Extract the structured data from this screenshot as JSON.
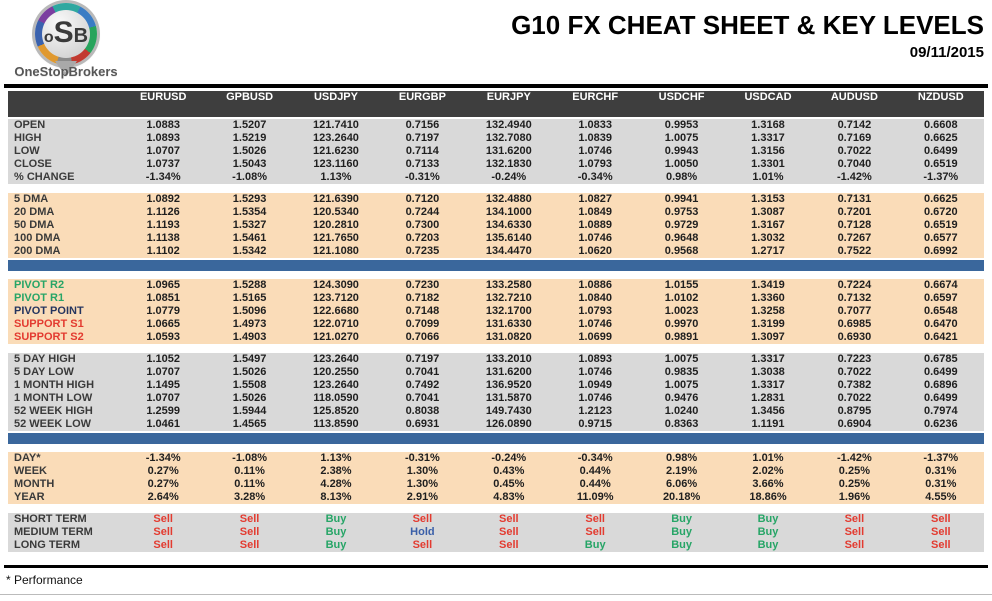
{
  "header": {
    "logo": {
      "letters": [
        "o",
        "S",
        "B"
      ],
      "brand": "OneStopBrokers"
    },
    "title": "G10 FX CHEAT SHEET & KEY LEVELS",
    "date": "09/11/2015"
  },
  "colors": {
    "header_bg": "#3E3E3E",
    "gray_row": "#D9D9D9",
    "peach_row": "#FADCB8",
    "blue_bar": "#3A679C",
    "sell": "#E33B30",
    "buy": "#27A567",
    "hold": "#3A5FA8",
    "resistance": "#27A567",
    "support": "#E33B30",
    "pivot_point": "#25355F",
    "brand_text": "#565656"
  },
  "table": {
    "columns": [
      "EURUSD",
      "GPBUSD",
      "USDJPY",
      "EURGBP",
      "EURJPY",
      "EURCHF",
      "USDCHF",
      "USDCAD",
      "AUDUSD",
      "NZDUSD"
    ],
    "sections": [
      {
        "id": "ohlc",
        "bg": "gray",
        "divider_before": "none",
        "rows": [
          {
            "label": "OPEN",
            "values": [
              "1.0883",
              "1.5207",
              "121.7410",
              "0.7156",
              "132.4940",
              "1.0833",
              "0.9953",
              "1.3168",
              "0.7142",
              "0.6608"
            ]
          },
          {
            "label": "HIGH",
            "values": [
              "1.0893",
              "1.5219",
              "123.2640",
              "0.7197",
              "132.7080",
              "1.0839",
              "1.0075",
              "1.3317",
              "0.7169",
              "0.6625"
            ]
          },
          {
            "label": "LOW",
            "values": [
              "1.0707",
              "1.5026",
              "121.6230",
              "0.7114",
              "131.6200",
              "1.0746",
              "0.9943",
              "1.3156",
              "0.7022",
              "0.6499"
            ]
          },
          {
            "label": "CLOSE",
            "values": [
              "1.0737",
              "1.5043",
              "123.1160",
              "0.7133",
              "132.1830",
              "1.0793",
              "1.0050",
              "1.3301",
              "0.7040",
              "0.6519"
            ]
          },
          {
            "label": "% CHANGE",
            "values": [
              "-1.34%",
              "-1.08%",
              "1.13%",
              "-0.31%",
              "-0.24%",
              "-0.34%",
              "0.98%",
              "1.01%",
              "-1.42%",
              "-1.37%"
            ]
          }
        ]
      },
      {
        "id": "dma",
        "bg": "peach",
        "divider_before": "gap",
        "rows": [
          {
            "label": "5 DMA",
            "values": [
              "1.0892",
              "1.5293",
              "121.6390",
              "0.7120",
              "132.4880",
              "1.0827",
              "0.9941",
              "1.3153",
              "0.7131",
              "0.6625"
            ]
          },
          {
            "label": "20 DMA",
            "values": [
              "1.1126",
              "1.5354",
              "120.5340",
              "0.7244",
              "134.1000",
              "1.0849",
              "0.9753",
              "1.3087",
              "0.7201",
              "0.6720"
            ]
          },
          {
            "label": "50 DMA",
            "values": [
              "1.1193",
              "1.5327",
              "120.2810",
              "0.7300",
              "134.6330",
              "1.0889",
              "0.9729",
              "1.3167",
              "0.7128",
              "0.6519"
            ]
          },
          {
            "label": "100 DMA",
            "values": [
              "1.1138",
              "1.5461",
              "121.7650",
              "0.7203",
              "135.6140",
              "1.0746",
              "0.9648",
              "1.3032",
              "0.7267",
              "0.6577"
            ]
          },
          {
            "label": "200 DMA",
            "values": [
              "1.1102",
              "1.5342",
              "121.1080",
              "0.7235",
              "134.4470",
              "1.0620",
              "0.9568",
              "1.2717",
              "0.7522",
              "0.6992"
            ]
          }
        ]
      },
      {
        "id": "pivots",
        "bg": "peach",
        "divider_before": "bar",
        "rows": [
          {
            "label": "PIVOT R2",
            "label_style": "resistance",
            "values": [
              "1.0965",
              "1.5288",
              "124.3090",
              "0.7230",
              "133.2580",
              "1.0886",
              "1.0155",
              "1.3419",
              "0.7224",
              "0.6674"
            ]
          },
          {
            "label": "PIVOT R1",
            "label_style": "resistance",
            "values": [
              "1.0851",
              "1.5165",
              "123.7120",
              "0.7182",
              "132.7210",
              "1.0840",
              "1.0102",
              "1.3360",
              "0.7132",
              "0.6597"
            ]
          },
          {
            "label": "PIVOT POINT",
            "label_style": "pivot",
            "values": [
              "1.0779",
              "1.5096",
              "122.6680",
              "0.7148",
              "132.1700",
              "1.0793",
              "1.0023",
              "1.3258",
              "0.7077",
              "0.6548"
            ]
          },
          {
            "label": "SUPPORT S1",
            "label_style": "support",
            "values": [
              "1.0665",
              "1.4973",
              "122.0710",
              "0.7099",
              "131.6330",
              "1.0746",
              "0.9970",
              "1.3199",
              "0.6985",
              "0.6470"
            ]
          },
          {
            "label": "SUPPORT S2",
            "label_style": "support",
            "values": [
              "1.0593",
              "1.4903",
              "121.0270",
              "0.7066",
              "131.0820",
              "1.0699",
              "0.9891",
              "1.3097",
              "0.6930",
              "0.6421"
            ]
          }
        ]
      },
      {
        "id": "ranges",
        "bg": "gray",
        "divider_before": "gap",
        "rows": [
          {
            "label": "5 DAY HIGH",
            "values": [
              "1.1052",
              "1.5497",
              "123.2640",
              "0.7197",
              "133.2010",
              "1.0893",
              "1.0075",
              "1.3317",
              "0.7223",
              "0.6785"
            ]
          },
          {
            "label": "5 DAY LOW",
            "values": [
              "1.0707",
              "1.5026",
              "120.2550",
              "0.7041",
              "131.6200",
              "1.0746",
              "0.9835",
              "1.3038",
              "0.7022",
              "0.6499"
            ]
          },
          {
            "label": "1 MONTH HIGH",
            "values": [
              "1.1495",
              "1.5508",
              "123.2640",
              "0.7492",
              "136.9520",
              "1.0949",
              "1.0075",
              "1.3317",
              "0.7382",
              "0.6896"
            ]
          },
          {
            "label": "1 MONTH LOW",
            "values": [
              "1.0707",
              "1.5026",
              "118.0590",
              "0.7041",
              "131.5870",
              "1.0746",
              "0.9476",
              "1.2831",
              "0.7022",
              "0.6499"
            ]
          },
          {
            "label": "52 WEEK HIGH",
            "values": [
              "1.2599",
              "1.5944",
              "125.8520",
              "0.8038",
              "149.7430",
              "1.2123",
              "1.0240",
              "1.3456",
              "0.8795",
              "0.7974"
            ]
          },
          {
            "label": "52 WEEK LOW",
            "values": [
              "1.0461",
              "1.4565",
              "113.8590",
              "0.6931",
              "126.0890",
              "0.9715",
              "0.8363",
              "1.1191",
              "0.6904",
              "0.6236"
            ]
          }
        ]
      },
      {
        "id": "performance",
        "bg": "peach",
        "divider_before": "bar",
        "rows": [
          {
            "label": "DAY*",
            "values": [
              "-1.34%",
              "-1.08%",
              "1.13%",
              "-0.31%",
              "-0.24%",
              "-0.34%",
              "0.98%",
              "1.01%",
              "-1.42%",
              "-1.37%"
            ]
          },
          {
            "label": "WEEK",
            "values": [
              "0.27%",
              "0.11%",
              "2.38%",
              "1.30%",
              "0.43%",
              "0.44%",
              "2.19%",
              "2.02%",
              "0.25%",
              "0.31%"
            ]
          },
          {
            "label": "MONTH",
            "values": [
              "0.27%",
              "0.11%",
              "4.28%",
              "1.30%",
              "0.45%",
              "0.44%",
              "6.06%",
              "3.66%",
              "0.25%",
              "0.31%"
            ]
          },
          {
            "label": "YEAR",
            "values": [
              "2.64%",
              "3.28%",
              "8.13%",
              "2.91%",
              "4.83%",
              "11.09%",
              "20.18%",
              "18.86%",
              "1.96%",
              "4.55%"
            ]
          }
        ]
      },
      {
        "id": "signals",
        "bg": "gray",
        "divider_before": "gap",
        "rows": [
          {
            "label": "SHORT TERM",
            "values": [
              "Sell",
              "Sell",
              "Buy",
              "Sell",
              "Sell",
              "Sell",
              "Buy",
              "Buy",
              "Sell",
              "Sell"
            ]
          },
          {
            "label": "MEDIUM TERM",
            "values": [
              "Sell",
              "Sell",
              "Buy",
              "Hold",
              "Sell",
              "Sell",
              "Buy",
              "Buy",
              "Sell",
              "Sell"
            ]
          },
          {
            "label": "LONG TERM",
            "values": [
              "Sell",
              "Sell",
              "Buy",
              "Sell",
              "Sell",
              "Buy",
              "Buy",
              "Buy",
              "Sell",
              "Sell"
            ]
          }
        ]
      }
    ]
  },
  "footnote": "* Performance"
}
